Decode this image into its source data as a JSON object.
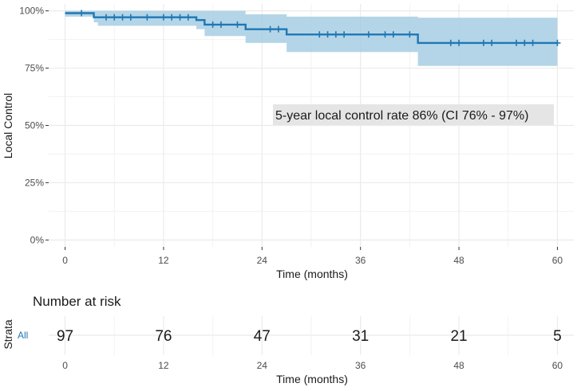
{
  "chart_data": {
    "type": "km-survival",
    "title": "",
    "xlabel": "Time (months)",
    "ylabel": "Local Control",
    "xlim": [
      -2,
      62
    ],
    "ylim": [
      -3,
      103
    ],
    "x_ticks": [
      0,
      12,
      24,
      36,
      48,
      60
    ],
    "y_ticks": [
      0,
      25,
      50,
      75,
      100
    ],
    "y_tick_labels": [
      "0%",
      "25%",
      "50%",
      "75%",
      "100%"
    ],
    "series": [
      {
        "name": "All",
        "color": "#1f77b4",
        "ci_color": "#a6cee3",
        "steps": [
          {
            "t": 0,
            "s": 99.0,
            "lo": 97.5,
            "hi": 100
          },
          {
            "t": 3.5,
            "s": 97.2,
            "lo": 95.0,
            "hi": 100
          },
          {
            "t": 4.0,
            "s": 97.2,
            "lo": 93.5,
            "hi": 100
          },
          {
            "t": 16.0,
            "s": 96.0,
            "lo": 92.0,
            "hi": 100
          },
          {
            "t": 17.0,
            "s": 94.0,
            "lo": 89.0,
            "hi": 100
          },
          {
            "t": 22.0,
            "s": 92.0,
            "lo": 86.0,
            "hi": 98.5
          },
          {
            "t": 27.0,
            "s": 89.7,
            "lo": 82.0,
            "hi": 97.5
          },
          {
            "t": 43.0,
            "s": 86.0,
            "lo": 76.0,
            "hi": 97.0
          },
          {
            "t": 60.0,
            "s": 86.0,
            "lo": 76.0,
            "hi": 97.0
          }
        ],
        "censor_times": [
          2,
          5,
          6,
          7,
          8,
          10,
          12,
          13,
          14,
          15,
          18,
          19,
          21,
          25,
          26,
          31,
          32,
          33,
          34,
          37,
          39,
          40,
          42,
          47,
          48,
          51,
          52,
          55,
          56,
          57,
          60
        ]
      }
    ],
    "annotation": "5-year local control rate 86% (CI 76% - 97%)"
  },
  "risk_table": {
    "title": "Number at risk",
    "ylabel": "Strata",
    "xlabel": "Time (months)",
    "strata_label": "All",
    "times": [
      0,
      12,
      24,
      36,
      48,
      60
    ],
    "counts": [
      97,
      76,
      47,
      31,
      21,
      5
    ]
  }
}
